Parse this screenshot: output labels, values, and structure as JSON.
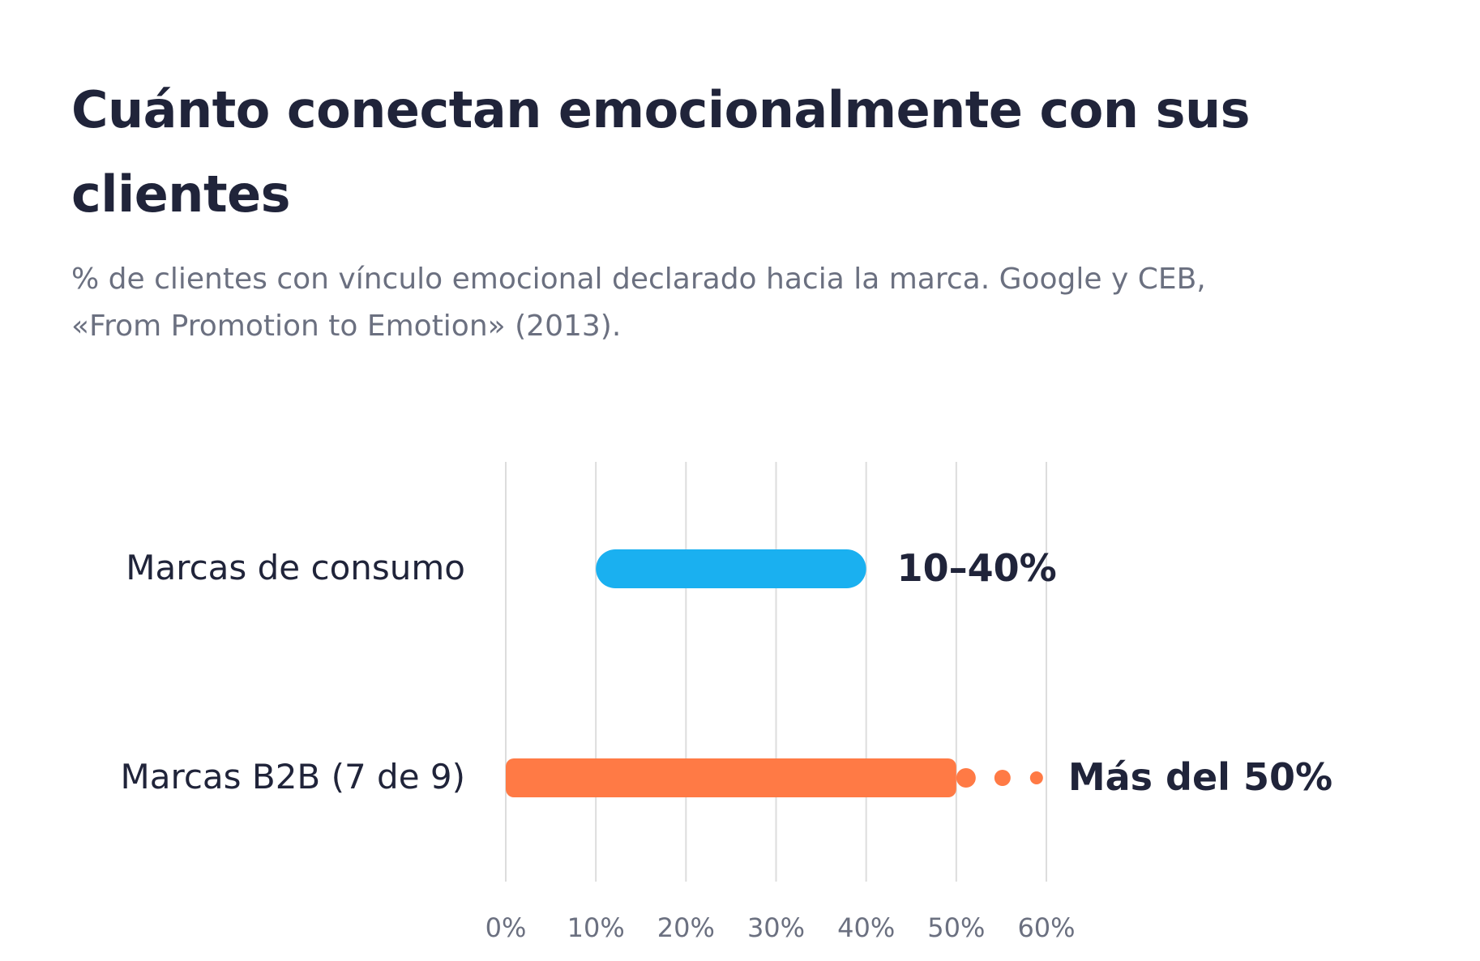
{
  "title": "Cuánto conectan emocionalmente con sus clientes",
  "subtitle": "% de clientes con vínculo emocional declarado hacia la marca. Google y CEB, «From Promotion to Emotion» (2013).",
  "chart_data": {
    "type": "bar",
    "orientation": "horizontal-range",
    "categories": [
      "Marcas de consumo",
      "Marcas B2B (7 de 9)"
    ],
    "ranges": [
      {
        "category": "Marcas de consumo",
        "start": 10,
        "end": 40,
        "label": "10–40%",
        "color": "#1ab0f0",
        "open_ended": false
      },
      {
        "category": "Marcas B2B (7 de 9)",
        "start": 0,
        "end": 50,
        "label": "Más del 50%",
        "color": "#ff7a45",
        "open_ended": true
      }
    ],
    "x_ticks": [
      0,
      10,
      20,
      30,
      40,
      50,
      60
    ],
    "x_tick_labels": [
      "0%",
      "10%",
      "20%",
      "30%",
      "40%",
      "50%",
      "60%"
    ],
    "xlim": [
      0,
      60
    ],
    "grid": true,
    "colors": {
      "consumer": "#1ab0f0",
      "b2b": "#ff7a45",
      "text": "#20243a",
      "muted": "#6b7080",
      "grid": "#dddddd"
    }
  }
}
